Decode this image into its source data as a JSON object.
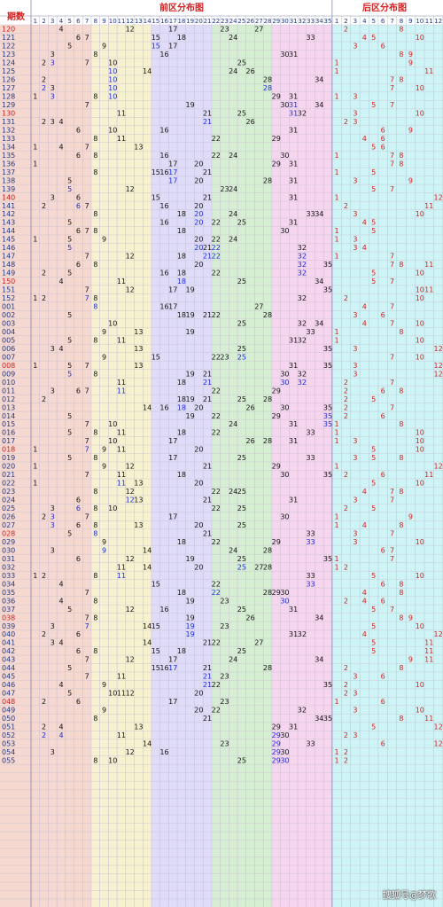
{
  "chart_data": {
    "type": "table",
    "title": "",
    "corner_label": "期数",
    "front_zone_title": "前区分布图",
    "back_zone_title": "后区分布图",
    "front_range": [
      1,
      35
    ],
    "back_range": [
      1,
      12
    ],
    "front_zone_colors": [
      "#f5d8cf",
      "#f6f2d0",
      "#dedcf8",
      "#d6efd2",
      "#f6d6ee"
    ],
    "back_zone_color": "#cff4f6",
    "rows": [
      {
        "issue": "120",
        "front": [
          4,
          12,
          17,
          23,
          27
        ],
        "back": [
          2,
          8
        ]
      },
      {
        "issue": "121",
        "front": [
          6,
          7,
          15,
          18,
          24,
          33
        ],
        "back": [
          4,
          5,
          10
        ]
      },
      {
        "issue": "122",
        "front": [
          5,
          9,
          15,
          17
        ],
        "back": [
          3,
          6
        ]
      },
      {
        "issue": "123",
        "front": [
          3,
          8,
          16,
          30,
          31
        ],
        "back": [
          8,
          9
        ]
      },
      {
        "issue": "124",
        "front": [
          2,
          3,
          7,
          10,
          25
        ],
        "back": [
          1,
          9
        ]
      },
      {
        "issue": "125",
        "front": [
          10,
          14,
          24,
          26
        ],
        "back": [
          1,
          11
        ]
      },
      {
        "issue": "126",
        "front": [
          2,
          10,
          28,
          34
        ],
        "back": [
          7,
          8
        ]
      },
      {
        "issue": "127",
        "front": [
          2,
          3,
          10,
          28
        ],
        "back": [
          7,
          10
        ]
      },
      {
        "issue": "128",
        "front": [
          1,
          3,
          8,
          10,
          29,
          31
        ],
        "back": [
          1,
          3
        ]
      },
      {
        "issue": "129",
        "front": [
          7,
          19,
          30,
          31,
          34
        ],
        "back": [
          5,
          7
        ]
      },
      {
        "issue": "130",
        "front": [
          11,
          21,
          25,
          31,
          32
        ],
        "back": [
          3,
          10
        ]
      },
      {
        "issue": "131",
        "front": [
          2,
          3,
          4,
          21,
          26
        ],
        "back": [
          2,
          3
        ]
      },
      {
        "issue": "132",
        "front": [
          6,
          10,
          16,
          31
        ],
        "back": [
          6,
          9
        ]
      },
      {
        "issue": "133",
        "front": [
          8,
          11,
          22,
          29
        ],
        "back": [
          4,
          6
        ]
      },
      {
        "issue": "134",
        "front": [
          1,
          4,
          7,
          13
        ],
        "back": [
          5,
          6
        ]
      },
      {
        "issue": "135",
        "front": [
          6,
          8,
          16,
          22,
          24,
          30
        ],
        "back": [
          1,
          7,
          8
        ]
      },
      {
        "issue": "136",
        "front": [
          1,
          17,
          20,
          29,
          31
        ],
        "back": [
          7,
          8
        ]
      },
      {
        "issue": "137",
        "front": [
          8,
          15,
          16,
          17,
          21
        ],
        "back": [
          1,
          5
        ]
      },
      {
        "issue": "138",
        "front": [
          5,
          17,
          20,
          28,
          31
        ],
        "back": [
          3,
          9
        ]
      },
      {
        "issue": "139",
        "front": [
          5,
          12,
          23,
          24
        ],
        "back": [
          5,
          7
        ]
      },
      {
        "issue": "140",
        "front": [
          3,
          6,
          15,
          21,
          31
        ],
        "back": [
          1,
          12
        ]
      },
      {
        "issue": "141",
        "front": [
          2,
          6,
          7,
          16,
          20
        ],
        "back": [
          2,
          11
        ]
      },
      {
        "issue": "142",
        "front": [
          8,
          18,
          20,
          24,
          33,
          34
        ],
        "back": [
          3,
          10
        ]
      },
      {
        "issue": "143",
        "front": [
          5,
          16,
          20,
          22,
          25,
          31
        ],
        "back": [
          4,
          5
        ]
      },
      {
        "issue": "144",
        "front": [
          6,
          7,
          8,
          18,
          30
        ],
        "back": [
          1,
          5
        ]
      },
      {
        "issue": "145",
        "front": [
          1,
          5,
          9,
          20,
          22,
          24
        ],
        "back": [
          1,
          3
        ]
      },
      {
        "issue": "146",
        "front": [
          5,
          20,
          21,
          22,
          32
        ],
        "back": [
          3,
          4
        ]
      },
      {
        "issue": "147",
        "front": [
          7,
          12,
          18,
          21,
          22,
          32
        ],
        "back": [
          1,
          7
        ]
      },
      {
        "issue": "148",
        "front": [
          6,
          8,
          20,
          32,
          35
        ],
        "back": [
          7,
          8,
          11
        ]
      },
      {
        "issue": "149",
        "front": [
          2,
          5,
          16,
          18,
          22,
          32
        ],
        "back": [
          5,
          10
        ]
      },
      {
        "issue": "150",
        "front": [
          4,
          11,
          18,
          25,
          34
        ],
        "back": [
          5,
          7
        ]
      },
      {
        "issue": "151",
        "front": [
          7,
          12,
          17,
          19,
          35
        ],
        "back": [
          10,
          11
        ]
      },
      {
        "issue": "152",
        "front": [
          1,
          2,
          7,
          8,
          32
        ],
        "back": [
          2,
          10
        ]
      },
      {
        "issue": "001",
        "front": [
          8,
          16,
          17,
          27
        ],
        "back": [
          4,
          7
        ]
      },
      {
        "issue": "002",
        "front": [
          5,
          18,
          19,
          21,
          22,
          28
        ],
        "back": [
          3,
          6
        ]
      },
      {
        "issue": "003",
        "front": [
          10,
          25,
          32,
          34
        ],
        "back": [
          4,
          7,
          10
        ]
      },
      {
        "issue": "004",
        "front": [
          9,
          13,
          19,
          33
        ],
        "back": [
          1,
          8
        ]
      },
      {
        "issue": "005",
        "front": [
          5,
          8,
          11,
          31,
          32
        ],
        "back": [
          1,
          10
        ]
      },
      {
        "issue": "006",
        "front": [
          3,
          4,
          13,
          25,
          35
        ],
        "back": [
          3,
          12
        ]
      },
      {
        "issue": "007",
        "front": [
          9,
          15,
          22,
          23,
          25
        ],
        "back": [
          7,
          10
        ]
      },
      {
        "issue": "008",
        "front": [
          1,
          5,
          7,
          13,
          31,
          35
        ],
        "back": [
          3,
          12
        ]
      },
      {
        "issue": "009",
        "front": [
          5,
          8,
          19,
          21,
          30,
          32
        ],
        "back": [
          3,
          12
        ]
      },
      {
        "issue": "010",
        "front": [
          11,
          18,
          21,
          30,
          32
        ],
        "back": [
          2,
          7
        ]
      },
      {
        "issue": "011",
        "front": [
          3,
          6,
          7,
          11,
          22,
          29
        ],
        "back": [
          2,
          6,
          8
        ]
      },
      {
        "issue": "012",
        "front": [
          2,
          18,
          19,
          21,
          25,
          28
        ],
        "back": [
          2,
          5
        ]
      },
      {
        "issue": "013",
        "front": [
          14,
          16,
          18,
          20,
          26,
          30,
          35
        ],
        "back": [
          2,
          7
        ]
      },
      {
        "issue": "014",
        "front": [
          5,
          19,
          22,
          29,
          35
        ],
        "back": [
          2,
          6
        ]
      },
      {
        "issue": "015",
        "front": [
          7,
          10,
          24,
          31,
          35
        ],
        "back": [
          1,
          8
        ]
      },
      {
        "issue": "016",
        "front": [
          5,
          8,
          11,
          18,
          22,
          33
        ],
        "back": [
          1,
          10
        ]
      },
      {
        "issue": "017",
        "front": [
          7,
          10,
          17,
          26,
          28,
          31
        ],
        "back": [
          1,
          3,
          10
        ]
      },
      {
        "issue": "018",
        "front": [
          1,
          7,
          9,
          11,
          20
        ],
        "back": [
          5,
          10
        ]
      },
      {
        "issue": "019",
        "front": [
          5,
          8,
          17,
          25,
          33
        ],
        "back": [
          3,
          5,
          8
        ]
      },
      {
        "issue": "020",
        "front": [
          1,
          9,
          12,
          21,
          29
        ],
        "back": [
          1,
          12
        ]
      },
      {
        "issue": "021",
        "front": [
          7,
          11,
          18,
          30,
          35
        ],
        "back": [
          2,
          6,
          11
        ]
      },
      {
        "issue": "022",
        "front": [
          1,
          11,
          13,
          20
        ],
        "back": [
          5,
          10
        ]
      },
      {
        "issue": "023",
        "front": [
          8,
          12,
          22,
          24,
          25
        ],
        "back": [
          4,
          7,
          8
        ]
      },
      {
        "issue": "024",
        "front": [
          6,
          12,
          13,
          21,
          31
        ],
        "back": [
          3,
          7
        ]
      },
      {
        "issue": "025",
        "front": [
          3,
          6,
          8,
          10,
          22,
          25
        ],
        "back": [
          2,
          5
        ]
      },
      {
        "issue": "026",
        "front": [
          2,
          3,
          7,
          17,
          30
        ],
        "back": [
          1,
          9
        ]
      },
      {
        "issue": "027",
        "front": [
          3,
          6,
          8,
          13,
          20,
          25
        ],
        "back": [
          1,
          4,
          8
        ]
      },
      {
        "issue": "028",
        "front": [
          5,
          8,
          21,
          33
        ],
        "back": [
          3,
          7
        ]
      },
      {
        "issue": "029",
        "front": [
          9,
          18,
          22,
          29,
          33
        ],
        "back": [
          3,
          10
        ]
      },
      {
        "issue": "030",
        "front": [
          3,
          9,
          14,
          24,
          28
        ],
        "back": [
          6,
          7
        ]
      },
      {
        "issue": "031",
        "front": [
          6,
          12,
          19,
          25,
          35
        ],
        "back": [
          1,
          7
        ]
      },
      {
        "issue": "032",
        "front": [
          11,
          14,
          20,
          25,
          27,
          28
        ],
        "back": [
          1,
          2
        ]
      },
      {
        "issue": "033",
        "front": [
          1,
          2,
          8,
          11,
          33
        ],
        "back": [
          5,
          10
        ]
      },
      {
        "issue": "034",
        "front": [
          4,
          15,
          22,
          33
        ],
        "back": [
          6,
          8
        ]
      },
      {
        "issue": "035",
        "front": [
          7,
          18,
          22,
          28,
          29,
          30
        ],
        "back": [
          4,
          8
        ]
      },
      {
        "issue": "036",
        "front": [
          4,
          8,
          19,
          23,
          30
        ],
        "back": [
          2,
          4,
          6
        ]
      },
      {
        "issue": "037",
        "front": [
          5,
          12,
          16,
          25,
          31
        ],
        "back": [
          5,
          7
        ]
      },
      {
        "issue": "038",
        "front": [
          7,
          8,
          19,
          26,
          34
        ],
        "back": [
          8,
          9
        ]
      },
      {
        "issue": "039",
        "front": [
          3,
          7,
          14,
          15,
          19,
          23
        ],
        "back": [
          5,
          10
        ]
      },
      {
        "issue": "040",
        "front": [
          2,
          6,
          19,
          31,
          32
        ],
        "back": [
          4,
          12
        ]
      },
      {
        "issue": "041",
        "front": [
          3,
          4,
          14,
          21,
          22,
          27
        ],
        "back": [
          5,
          11
        ]
      },
      {
        "issue": "042",
        "front": [
          6,
          8,
          15,
          18,
          25
        ],
        "back": [
          5,
          11
        ]
      },
      {
        "issue": "043",
        "front": [
          7,
          12,
          17,
          24,
          34
        ],
        "back": [
          9,
          11
        ]
      },
      {
        "issue": "044",
        "front": [
          5,
          15,
          16,
          17,
          21,
          28
        ],
        "back": [
          2,
          8
        ]
      },
      {
        "issue": "045",
        "front": [
          7,
          11,
          21,
          23
        ],
        "back": [
          3,
          6
        ]
      },
      {
        "issue": "046",
        "front": [
          4,
          9,
          21,
          22,
          35
        ],
        "back": [
          2,
          10
        ]
      },
      {
        "issue": "047",
        "front": [
          5,
          10,
          11,
          12,
          20
        ],
        "back": [
          2,
          3
        ]
      },
      {
        "issue": "048",
        "front": [
          2,
          6,
          17,
          23
        ],
        "back": [
          1,
          6
        ]
      },
      {
        "issue": "049",
        "front": [
          9,
          20,
          22,
          32
        ],
        "back": [
          3,
          10
        ]
      },
      {
        "issue": "050",
        "front": [
          8,
          21,
          34,
          35
        ],
        "back": [
          8,
          11
        ]
      },
      {
        "issue": "051",
        "front": [
          2,
          4,
          13,
          29,
          31
        ],
        "back": [
          5,
          12
        ]
      },
      {
        "issue": "052",
        "front": [
          2,
          4,
          11,
          29,
          30
        ],
        "back": [
          2,
          3
        ]
      },
      {
        "issue": "053",
        "front": [
          14,
          23,
          29,
          33
        ],
        "back": [
          6,
          12
        ]
      },
      {
        "issue": "054",
        "front": [
          3,
          12,
          16,
          29,
          30
        ],
        "back": [
          1,
          2
        ]
      },
      {
        "issue": "055",
        "front": [
          8,
          10,
          25,
          29,
          30
        ],
        "back": [
          1,
          2
        ]
      }
    ]
  },
  "watermark": "搜狐号@梦歌"
}
